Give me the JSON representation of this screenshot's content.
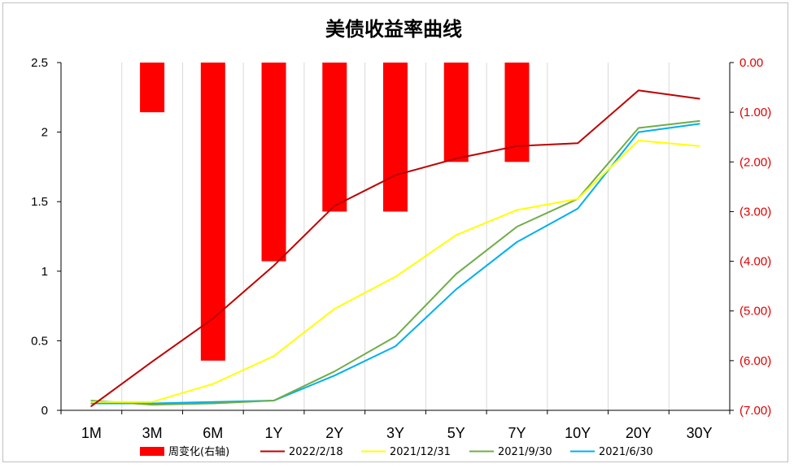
{
  "chart_data": {
    "type": "bar+line",
    "title": "美债收益率曲线",
    "categories": [
      "1M",
      "3M",
      "6M",
      "1Y",
      "2Y",
      "3Y",
      "5Y",
      "7Y",
      "10Y",
      "20Y",
      "30Y"
    ],
    "left_axis": {
      "ylim": [
        0,
        2.5
      ],
      "ticks": [
        "0",
        "0.5",
        "1",
        "1.5",
        "2",
        "2.5"
      ]
    },
    "right_axis": {
      "ylim": [
        -7,
        0
      ],
      "ticks": [
        "0.00",
        "(1.00)",
        "(2.00)",
        "(3.00)",
        "(4.00)",
        "(5.00)",
        "(6.00)",
        "(7.00)"
      ]
    },
    "bar_series": {
      "name": "周变化(右轴)",
      "color": "#ff0000",
      "values": [
        null,
        -1,
        -6,
        -4,
        -3,
        -3,
        -2,
        -2,
        null,
        null,
        null
      ]
    },
    "series": [
      {
        "name": "2022/2/18",
        "color": "#c00000",
        "values": [
          0.03,
          0.35,
          0.66,
          1.04,
          1.47,
          1.69,
          1.81,
          1.9,
          1.92,
          2.3,
          2.24
        ]
      },
      {
        "name": "2021/12/31",
        "color": "#ffff00",
        "values": [
          0.06,
          0.06,
          0.19,
          0.39,
          0.73,
          0.96,
          1.26,
          1.44,
          1.52,
          1.94,
          1.9
        ]
      },
      {
        "name": "2021/9/30",
        "color": "#70ad47",
        "values": [
          0.07,
          0.04,
          0.05,
          0.07,
          0.28,
          0.53,
          0.98,
          1.32,
          1.52,
          2.03,
          2.08
        ]
      },
      {
        "name": "2021/6/30",
        "color": "#00b0f0",
        "values": [
          0.05,
          0.05,
          0.06,
          0.07,
          0.25,
          0.46,
          0.87,
          1.21,
          1.45,
          2.0,
          2.06
        ]
      }
    ],
    "legend_position": "bottom",
    "grid": "vertical category lines"
  }
}
